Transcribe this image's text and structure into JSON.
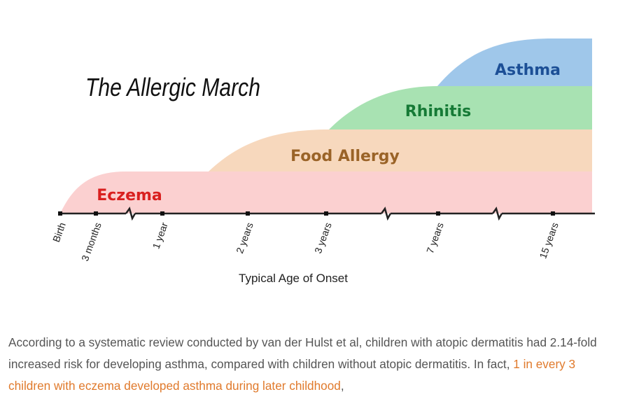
{
  "diagram": {
    "title": "The Allergic March",
    "axis_title": "Typical Age of Onset",
    "bands": [
      {
        "id": "eczema",
        "label": "Eczema",
        "fill": "#fbd0d0",
        "text_color": "#d9201f"
      },
      {
        "id": "food-allergy",
        "label": "Food Allergy",
        "fill": "#f7d8bd",
        "text_color": "#9a6327"
      },
      {
        "id": "rhinitis",
        "label": "Rhinitis",
        "fill": "#a8e2b2",
        "text_color": "#167a36"
      },
      {
        "id": "asthma",
        "label": "Asthma",
        "fill": "#9fc7ea",
        "text_color": "#1c4f96"
      }
    ],
    "ticks": [
      "Birth",
      "3 months",
      "1 year",
      "2 years",
      "3 years",
      "7 years",
      "15 years"
    ]
  },
  "caption": {
    "part1": "According to a systematic review conducted by van der Hulst et al, children with atopic dermatitis had 2.14-fold increased risk for developing asthma, compared with children without atopic dermatitis. In fact, ",
    "link": "1 in every 3 children with eczema developed asthma during later childhood",
    "part2": ","
  }
}
